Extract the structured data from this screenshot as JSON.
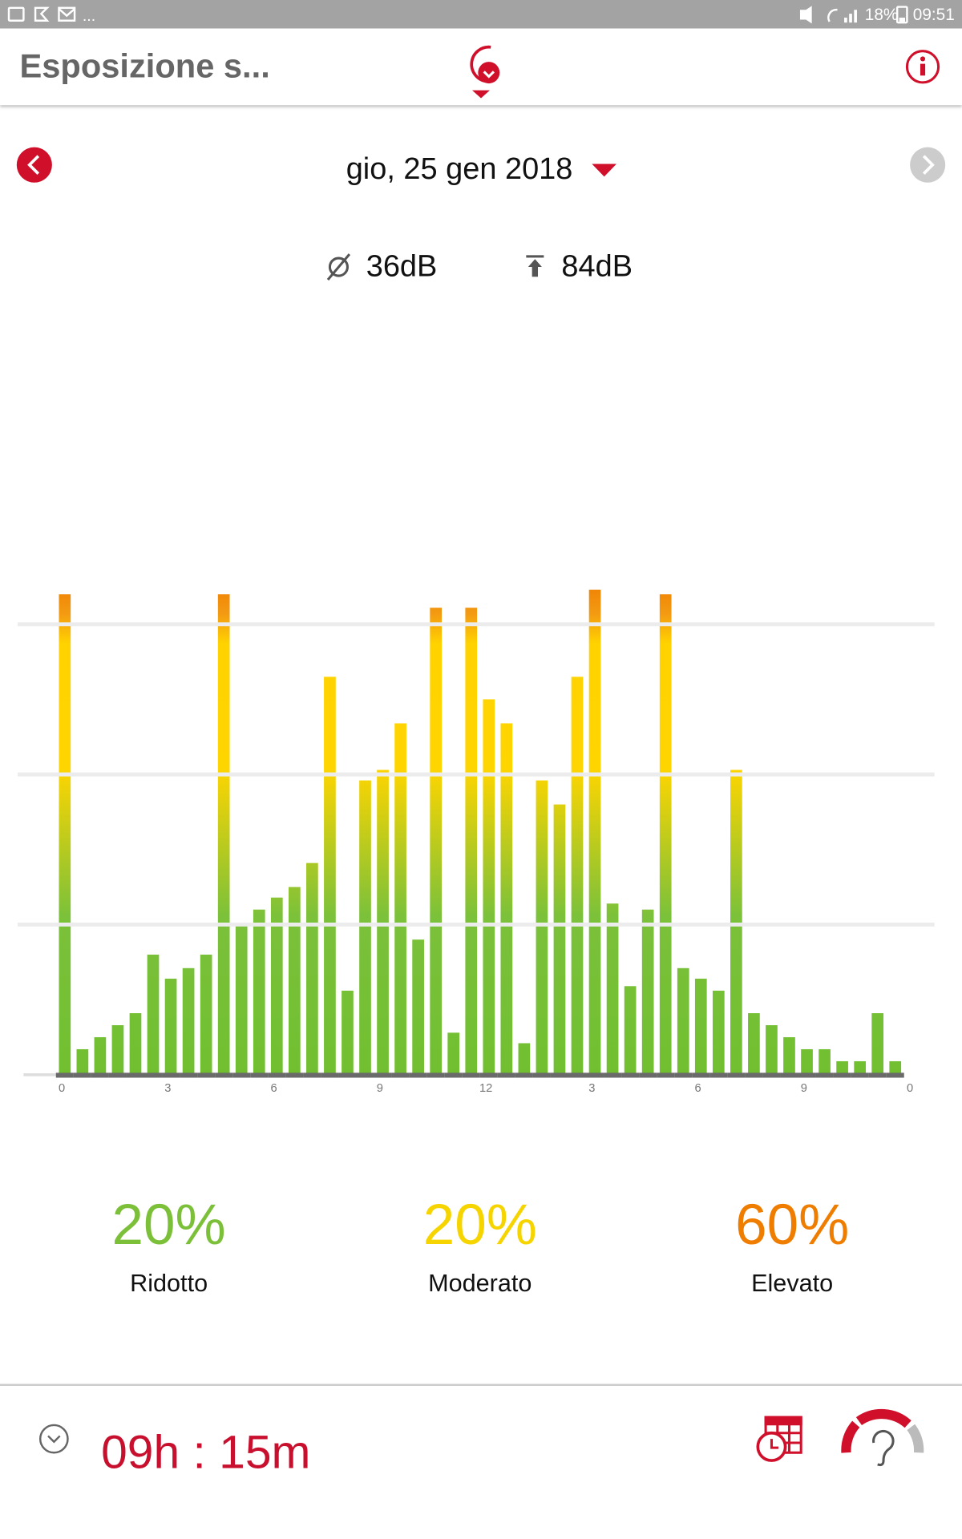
{
  "status_bar": {
    "overflow": "...",
    "battery": "18%",
    "time": "09:51"
  },
  "header": {
    "title": "Esposizione s..."
  },
  "date": "gio, 25 gen 2018",
  "stats": {
    "average": "36dB",
    "max": "84dB"
  },
  "chart_data": {
    "type": "bar",
    "values": [
      3.2,
      0.17,
      0.25,
      0.33,
      0.41,
      0.8,
      0.64,
      0.71,
      0.8,
      3.2,
      1.0,
      1.1,
      1.18,
      1.25,
      1.41,
      2.65,
      0.56,
      1.96,
      2.03,
      2.34,
      0.9,
      3.11,
      0.28,
      3.11,
      2.5,
      2.34,
      0.21,
      1.96,
      1.8,
      2.65,
      3.23,
      1.14,
      0.59,
      1.1,
      3.2,
      0.71,
      0.64,
      0.56,
      2.03,
      0.41,
      0.33,
      0.25,
      0.17,
      0.17,
      0.09,
      0.09,
      0.41,
      0.09
    ],
    "ylim": [
      0,
      3.3
    ],
    "yticks": [
      1,
      2,
      3
    ],
    "grid": true,
    "x_labels": [
      "0",
      "3",
      "6",
      "9",
      "12",
      "3",
      "6",
      "9",
      "0"
    ]
  },
  "summary": [
    {
      "value": "20%",
      "label": "Ridotto",
      "color": "#7cc03a"
    },
    {
      "value": "20%",
      "label": "Moderato",
      "color": "#f5d400"
    },
    {
      "value": "60%",
      "label": "Elevato",
      "color": "#ef7d00"
    }
  ],
  "duration": "09h : 15m"
}
